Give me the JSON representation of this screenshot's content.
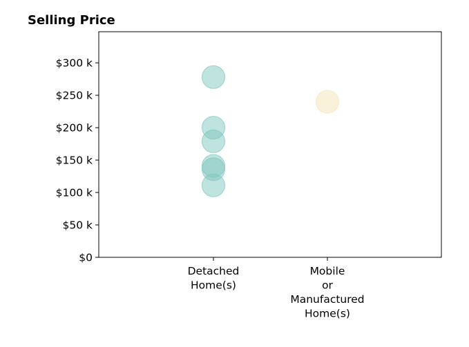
{
  "chart_data": {
    "type": "scatter",
    "title": "Selling Price",
    "xlabel": "",
    "ylabel": "",
    "categories": [
      [
        "Detached",
        "Home(s)"
      ],
      [
        "Mobile",
        "or",
        "Manufactured",
        "Home(s)"
      ]
    ],
    "series": [
      {
        "category_index": 0,
        "color": "#7fc7bd",
        "values": [
          278000,
          200000,
          179000,
          141000,
          136000,
          111000
        ]
      },
      {
        "category_index": 1,
        "color": "#f5e3b5",
        "values": [
          240000
        ]
      }
    ],
    "y_ticks": [
      0,
      50000,
      100000,
      150000,
      200000,
      250000,
      300000
    ],
    "y_tick_labels": [
      "$0",
      "$50 k",
      "$100 k",
      "$150 k",
      "$200 k",
      "$250 k",
      "$300 k"
    ],
    "ylim": [
      0,
      348000
    ],
    "grid": false,
    "legend": "none"
  }
}
